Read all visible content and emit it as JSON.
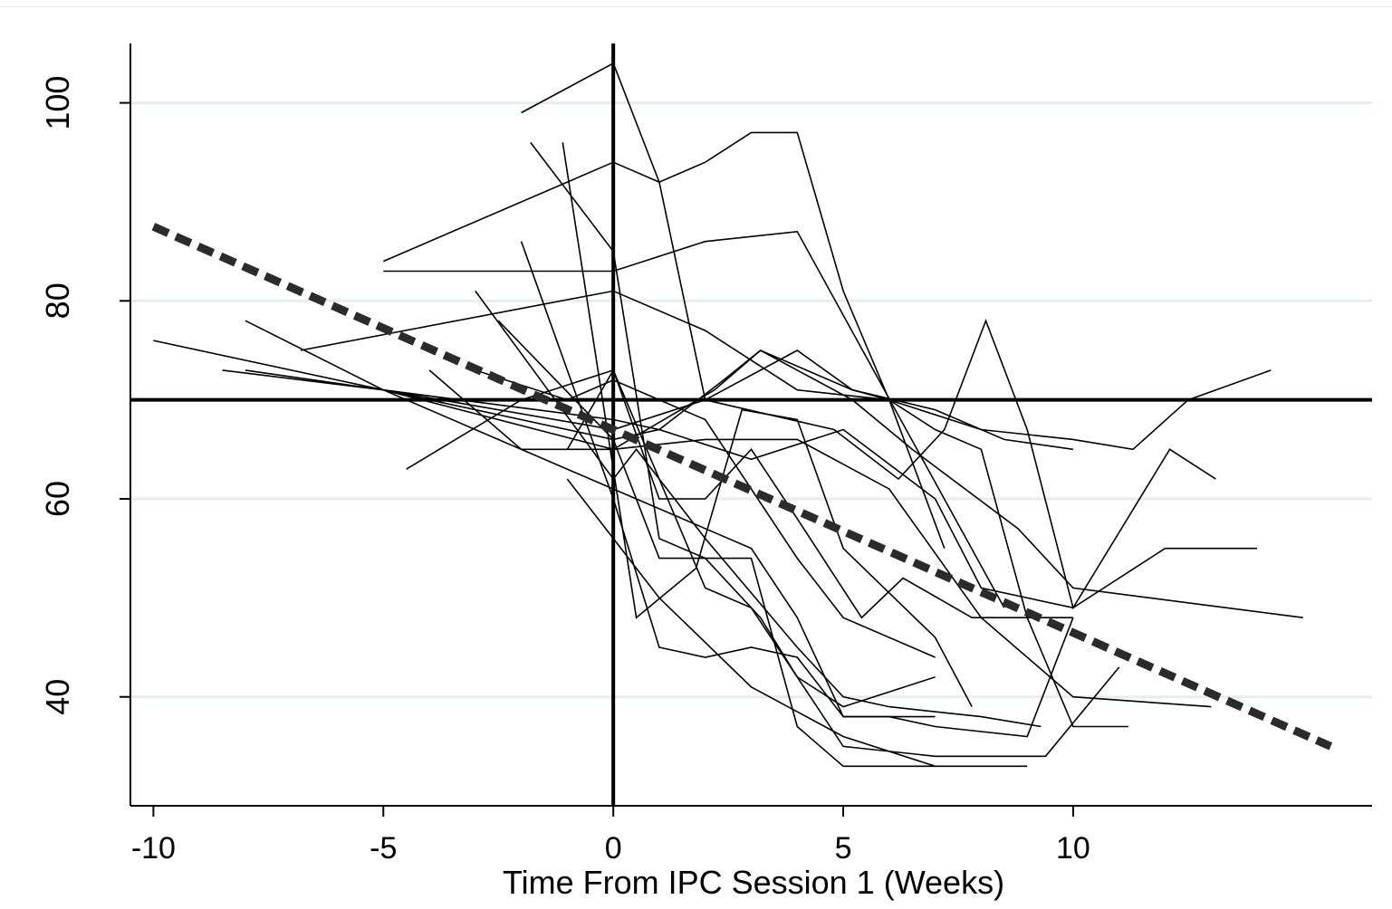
{
  "chart_data": {
    "type": "line",
    "xlabel": "Time From IPC Session 1 (Weeks)",
    "ylabel": "",
    "xlim": [
      -10.5,
      16.5
    ],
    "ylim": [
      29,
      106
    ],
    "xticks": [
      -10,
      -5,
      0,
      5,
      10
    ],
    "xtick_labels": [
      "-10",
      "-5",
      "0",
      "5",
      "10"
    ],
    "yticks": [
      40,
      60,
      80,
      100
    ],
    "ytick_labels": [
      "40",
      "60",
      "80",
      "100"
    ],
    "grid": "horizontal",
    "reference_lines": {
      "x": 0,
      "y": 70
    },
    "trend": {
      "x": [
        -10,
        15.6
      ],
      "y": [
        87.5,
        35
      ]
    },
    "series": [
      {
        "x": [
          -2,
          0,
          1,
          2,
          4,
          5.2,
          6,
          7,
          8,
          9,
          10,
          11.2
        ],
        "y": [
          99,
          104,
          92,
          70,
          75,
          71,
          70,
          67,
          65,
          48,
          37,
          37
        ]
      },
      {
        "x": [
          -1.8,
          0,
          1,
          2,
          3.2,
          4,
          5,
          7
        ],
        "y": [
          96,
          85,
          56,
          54,
          48,
          42,
          39,
          42
        ]
      },
      {
        "x": [
          -1.1,
          0.5,
          1.8,
          2.8,
          4,
          5,
          7,
          7.8
        ],
        "y": [
          96,
          48,
          53,
          69,
          68,
          55,
          46,
          39
        ]
      },
      {
        "x": [
          -5,
          0,
          1,
          2,
          3,
          4,
          5,
          6,
          7.2
        ],
        "y": [
          84,
          94,
          92,
          94,
          97,
          97,
          81,
          70,
          55
        ]
      },
      {
        "x": [
          -5,
          0,
          2,
          4,
          8.5
        ],
        "y": [
          83,
          83,
          86,
          87,
          49
        ]
      },
      {
        "x": [
          -6.8,
          0,
          2,
          4,
          6,
          8,
          10,
          11.3,
          12.5,
          14.3
        ],
        "y": [
          75,
          81,
          77,
          71,
          70,
          67,
          66,
          65,
          70,
          73
        ]
      },
      {
        "x": [
          -10,
          -5,
          0,
          2,
          4.8,
          6.2,
          7.2,
          8.1,
          9,
          10,
          12.1,
          13.1
        ],
        "y": [
          76,
          71,
          67,
          70,
          67,
          62,
          67,
          78,
          67,
          49,
          65,
          62
        ]
      },
      {
        "x": [
          -8,
          -5,
          0,
          1,
          2.4,
          3.2,
          4,
          5.2,
          6.5,
          8.8,
          10,
          15
        ],
        "y": [
          73,
          71,
          68,
          67,
          72,
          75,
          73,
          70,
          65,
          57,
          51,
          48
        ]
      },
      {
        "x": [
          -8.5,
          -5,
          0,
          2.2,
          3.2,
          5.2,
          7,
          8.5,
          10
        ],
        "y": [
          73,
          71,
          65,
          71,
          75,
          71,
          69,
          66,
          65
        ]
      },
      {
        "x": [
          -4.5,
          -2,
          0,
          1,
          2,
          3,
          4,
          5.4,
          6.3,
          7.8,
          10
        ],
        "y": [
          63,
          70,
          73,
          60,
          60,
          65,
          58,
          48,
          52,
          48,
          48
        ]
      },
      {
        "x": [
          -1,
          0,
          1,
          3,
          5,
          7,
          9
        ],
        "y": [
          62,
          56,
          50,
          41,
          36,
          33,
          33
        ]
      },
      {
        "x": [
          -2,
          0,
          1,
          2,
          3,
          4,
          5,
          6,
          7,
          9,
          10
        ],
        "y": [
          86,
          60,
          45,
          44,
          45,
          44,
          38,
          38,
          37,
          36,
          48
        ]
      },
      {
        "x": [
          -3,
          -1,
          0,
          2,
          4,
          5,
          7
        ],
        "y": [
          73,
          70,
          72,
          68,
          54,
          48,
          44
        ]
      },
      {
        "x": [
          -3,
          0,
          0.5,
          2,
          4,
          5,
          6,
          8,
          9.3
        ],
        "y": [
          81,
          62,
          65,
          56,
          45,
          40,
          39,
          38,
          37
        ]
      },
      {
        "x": [
          -2.5,
          0,
          1,
          2,
          3,
          4,
          5,
          7
        ],
        "y": [
          78,
          66,
          54,
          54,
          54,
          37,
          33,
          33
        ]
      },
      {
        "x": [
          -1,
          0,
          1,
          2,
          3,
          5,
          7,
          9.4,
          11
        ],
        "y": [
          65,
          73,
          62,
          51,
          49,
          35,
          34,
          34,
          43
        ]
      },
      {
        "x": [
          -8,
          -5,
          0,
          1,
          3,
          5,
          7,
          8,
          10,
          12,
          14
        ],
        "y": [
          78,
          71,
          66,
          67,
          64,
          67,
          60,
          51,
          49,
          55,
          55
        ]
      },
      {
        "x": [
          -4,
          -2,
          0,
          2,
          4,
          6,
          8,
          10,
          13
        ],
        "y": [
          73,
          65,
          65,
          66,
          66,
          61,
          48,
          40,
          39
        ]
      },
      {
        "x": [
          -5,
          0,
          2,
          3,
          4,
          5,
          7
        ],
        "y": [
          71,
          61,
          57,
          55,
          48,
          38,
          38
        ]
      }
    ]
  }
}
